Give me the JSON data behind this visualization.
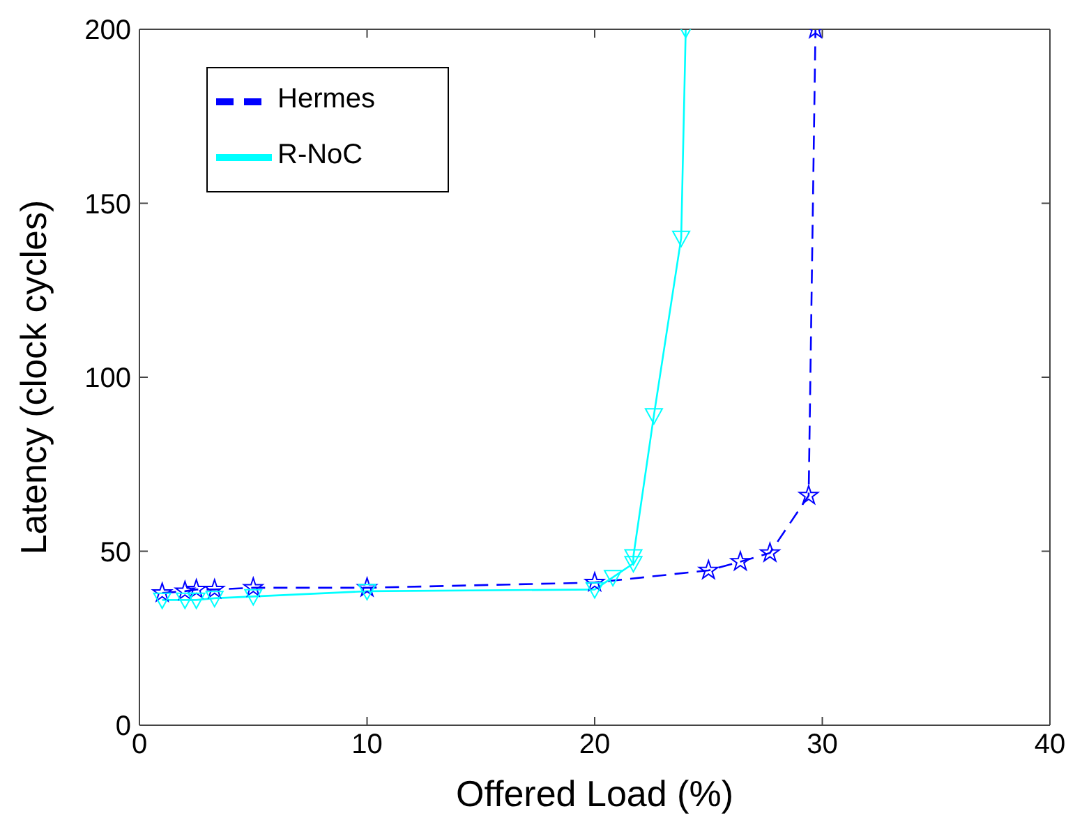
{
  "chart_data": {
    "type": "line",
    "xlabel": "Offered Load (%)",
    "ylabel": "Latency (clock cycles)",
    "xlim": [
      0,
      40
    ],
    "xticks": [
      0,
      10,
      20,
      30,
      40
    ],
    "ylim": [
      0,
      200
    ],
    "yticks": [
      0,
      50,
      100,
      150,
      200
    ],
    "grid": false,
    "legend": "top left",
    "series": [
      {
        "name": "Hermes",
        "color": "#0000ff",
        "line_style": "dashed",
        "marker": "star",
        "x": [
          1,
          2,
          2.5,
          3.3,
          5,
          10,
          20,
          25,
          26.4,
          27.7,
          29.4,
          29.7
        ],
        "values": [
          38,
          38.5,
          39,
          39,
          39.5,
          39.5,
          41,
          44.5,
          47,
          49.5,
          66,
          200
        ]
      },
      {
        "name": "R-NoC",
        "color": "#00ffff",
        "line_style": "solid",
        "marker": "triangle",
        "x": [
          1,
          2,
          2.5,
          3.3,
          5,
          10,
          20,
          20.8,
          21.7,
          21.7,
          22.6,
          23.8,
          24
        ],
        "values": [
          36,
          36,
          36,
          36.5,
          37,
          38.5,
          39,
          42.5,
          46.5,
          48.5,
          89,
          140,
          200
        ]
      }
    ]
  }
}
